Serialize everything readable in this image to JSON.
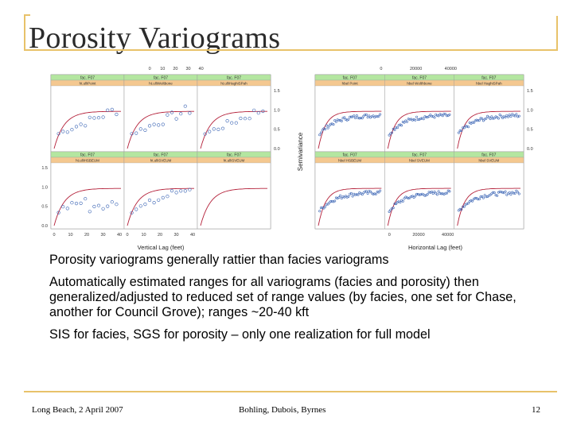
{
  "slide": {
    "title": "Porosity Variograms",
    "bullets": [
      "Porosity variograms generally rattier than facies variograms",
      "Automatically estimated ranges for all variograms (facies and porosity) then generalized/adjusted to reduced set of range values (by facies, one set for Chase, another for Council Grove); ranges ~20-40 kft",
      "SIS for facies, SGS for porosity – only one realization for full model"
    ],
    "footer": {
      "left": "Long Beach, 2 April 2007",
      "center": "Bohling, Dubois, Byrnes",
      "right": "12"
    }
  },
  "figure": {
    "colors": {
      "header_green": "#b4e6a0",
      "header_orange": "#f4c890",
      "model_line": "#b4213a",
      "points": "#3a64b4",
      "panel_bg": "#ffffff"
    },
    "left_plot": {
      "ylabel": "Semivariance",
      "xlabel": "Vertical Lag (feet)",
      "top_ticks": [
        "0",
        "10",
        "20",
        "30",
        "40"
      ],
      "bottom_ticks": [
        "0",
        "10",
        "20",
        "30",
        "40"
      ],
      "left_ticks": [
        "1.5",
        "1.0",
        "0.5",
        "0.0"
      ],
      "right_ticks": [
        "1.5",
        "1.0",
        "0.5",
        "0.0"
      ],
      "panels": [
        {
          "head": "fac. F07",
          "sub": "ht.ulliPoint"
        },
        {
          "head": "fac. F07",
          "sub": "ht.ulliWoltbone"
        },
        {
          "head": "fac. F07",
          "sub": "ht.ulliHaghiSPah"
        },
        {
          "head": "fac. F07",
          "sub": "ht.ulliHSBEUM"
        },
        {
          "head": "fac. F07",
          "sub": "ht.ulliSVEUM"
        },
        {
          "head": "fac. F07",
          "sub": "ht.ulliSVEUM"
        }
      ]
    },
    "right_plot": {
      "ylabel": "Semivariance",
      "xlabel": "Horizontal Lag (feet)",
      "top_ticks": [
        "0",
        "20000",
        "40000"
      ],
      "bottom_ticks": [
        "0",
        "20000",
        "40000"
      ],
      "right_ticks": [
        "1.5",
        "1.0",
        "0.5",
        "0.0"
      ],
      "panels": [
        {
          "head": "fac. F07",
          "sub": "hbel Point"
        },
        {
          "head": "fac. F07",
          "sub": "hbel Wolthbone"
        },
        {
          "head": "fac. F07",
          "sub": "hbel HaghiSPah"
        },
        {
          "head": "fac. F07",
          "sub": "hbel HSBEUM"
        },
        {
          "head": "fac. F07",
          "sub": "hbel SVEUM"
        },
        {
          "head": "fac. F07",
          "sub": "hbel SVEUM"
        }
      ]
    }
  }
}
